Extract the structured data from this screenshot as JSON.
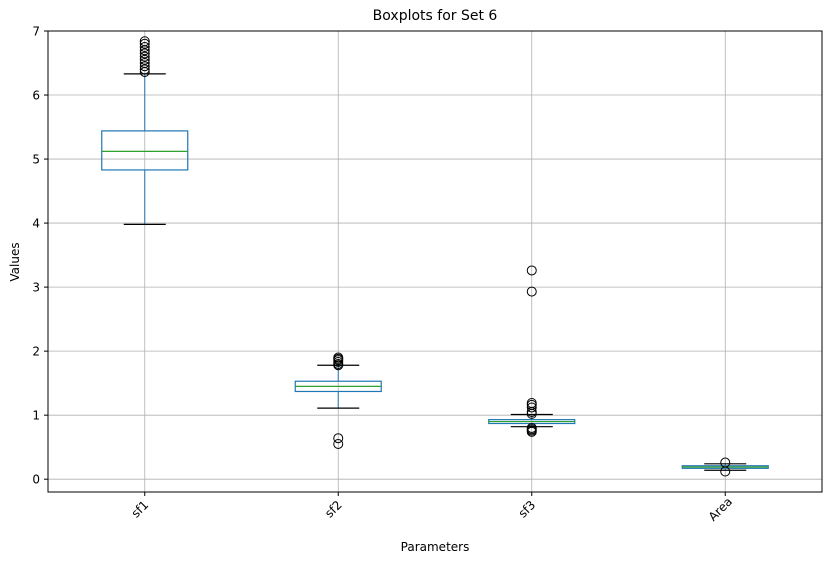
{
  "chart_data": {
    "type": "boxplot",
    "title": "Boxplots for Set 6",
    "xlabel": "Parameters",
    "ylabel": "Values",
    "ylim": [
      -0.2,
      7.0
    ],
    "yticks": [
      0,
      1,
      2,
      3,
      4,
      5,
      6,
      7
    ],
    "grid": true,
    "categories": [
      "sf1",
      "sf2",
      "sf3",
      "Area"
    ],
    "boxes": [
      {
        "label": "sf1",
        "whisker_low": 3.98,
        "q1": 4.83,
        "median": 5.12,
        "q3": 5.44,
        "whisker_high": 6.33,
        "outliers": [
          6.36,
          6.4,
          6.45,
          6.5,
          6.55,
          6.6,
          6.65,
          6.7,
          6.75,
          6.8,
          6.84
        ]
      },
      {
        "label": "sf2",
        "whisker_low": 1.11,
        "q1": 1.37,
        "median": 1.45,
        "q3": 1.53,
        "whisker_high": 1.78,
        "outliers": [
          0.55,
          0.64,
          1.78,
          1.8,
          1.83,
          1.86,
          1.88,
          1.9
        ]
      },
      {
        "label": "sf3",
        "whisker_low": 0.82,
        "q1": 0.87,
        "median": 0.9,
        "q3": 0.93,
        "whisker_high": 1.01,
        "outliers": [
          0.74,
          0.76,
          0.78,
          0.8,
          1.02,
          1.05,
          1.12,
          1.16,
          1.19,
          2.93,
          3.26
        ]
      },
      {
        "label": "Area",
        "whisker_low": 0.14,
        "q1": 0.17,
        "median": 0.19,
        "q3": 0.21,
        "whisker_high": 0.24,
        "outliers": [
          0.12,
          0.26
        ]
      }
    ],
    "colors": {
      "box": "#1f77b4",
      "median": "#2ca02c",
      "whisker": "#000000",
      "grid": "#b0b0b0",
      "outlier": "#000000"
    }
  }
}
